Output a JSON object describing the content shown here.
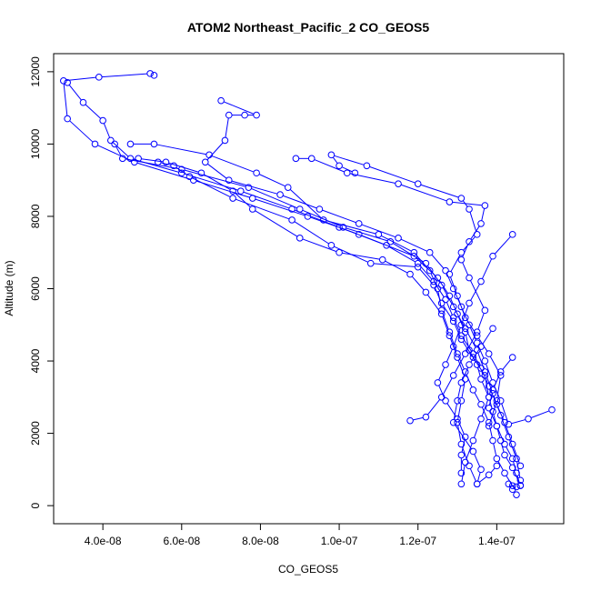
{
  "chart_data": {
    "type": "line",
    "title": "ATOM2 Northeast_Pacific_2 CO_GEOS5",
    "xlabel": "CO_GEOS5",
    "ylabel": "Altitude (m)",
    "xlim": [
      2.75e-08,
      1.57e-07
    ],
    "ylim": [
      -500,
      12500
    ],
    "x_ticks": [
      4e-08,
      6e-08,
      8e-08,
      1e-07,
      1.2e-07,
      1.4e-07
    ],
    "x_tick_labels": [
      "4.0e-08",
      "6.0e-08",
      "8.0e-08",
      "1.0e-07",
      "1.2e-07",
      "1.4e-07"
    ],
    "y_ticks": [
      0,
      2000,
      4000,
      6000,
      8000,
      10000,
      12000
    ],
    "y_tick_labels": [
      "0",
      "2000",
      "4000",
      "6000",
      "8000",
      "10000",
      "12000"
    ],
    "grid": false,
    "marker": "open-circle",
    "series": [
      {
        "color": "#0000ff",
        "points": [
          [
            1.45e-07,
            300
          ],
          [
            1.44e-07,
            450
          ],
          [
            1.43e-07,
            600
          ],
          [
            1.45e-07,
            520
          ],
          [
            1.46e-07,
            560
          ],
          [
            1.44e-07,
            1050
          ],
          [
            1.42e-07,
            1400
          ],
          [
            1.41e-07,
            1800
          ],
          [
            1.4e-07,
            2200
          ],
          [
            1.39e-07,
            2600
          ],
          [
            1.38e-07,
            3000
          ],
          [
            1.36e-07,
            3500
          ],
          [
            1.35e-07,
            3900
          ],
          [
            1.33e-07,
            4300
          ],
          [
            1.32e-07,
            4800
          ],
          [
            1.3e-07,
            5300
          ],
          [
            1.28e-07,
            5800
          ],
          [
            1.25e-07,
            6300
          ],
          [
            1.19e-07,
            6900
          ],
          [
            1.05e-07,
            7500
          ],
          [
            9.2e-08,
            8000
          ],
          [
            7.8e-08,
            8500
          ],
          [
            6.3e-08,
            9000
          ],
          [
            4.8e-08,
            9500
          ],
          [
            3.8e-08,
            10000
          ],
          [
            3.1e-08,
            10700
          ],
          [
            3e-08,
            11750
          ],
          [
            3.9e-08,
            11850
          ],
          [
            5.2e-08,
            11950
          ],
          [
            5.3e-08,
            11900
          ]
        ]
      },
      {
        "color": "#0000ff",
        "points": [
          [
            1.46e-07,
            1100
          ],
          [
            1.44e-07,
            1700
          ],
          [
            1.42e-07,
            2300
          ],
          [
            1.4e-07,
            2800
          ],
          [
            1.38e-07,
            3300
          ],
          [
            1.36e-07,
            3800
          ],
          [
            1.34e-07,
            4200
          ],
          [
            1.31e-07,
            4700
          ],
          [
            1.29e-07,
            5200
          ],
          [
            1.27e-07,
            5700
          ],
          [
            1.24e-07,
            6200
          ],
          [
            1.2e-07,
            6700
          ],
          [
            1.12e-07,
            7200
          ],
          [
            1e-07,
            7700
          ],
          [
            8.8e-08,
            8200
          ],
          [
            7.5e-08,
            8700
          ],
          [
            6e-08,
            9200
          ],
          [
            4.7e-08,
            9600
          ],
          [
            4.2e-08,
            10100
          ],
          [
            4e-08,
            10650
          ],
          [
            3.5e-08,
            11150
          ],
          [
            3.1e-08,
            11700
          ]
        ]
      },
      {
        "color": "#0000ff",
        "points": [
          [
            1.54e-07,
            2650
          ],
          [
            1.48e-07,
            2400
          ],
          [
            1.43e-07,
            2250
          ],
          [
            1.41e-07,
            2900
          ],
          [
            1.39e-07,
            3400
          ],
          [
            1.37e-07,
            4000
          ],
          [
            1.35e-07,
            4500
          ],
          [
            1.33e-07,
            5000
          ],
          [
            1.31e-07,
            5500
          ],
          [
            1.29e-07,
            6000
          ],
          [
            1.27e-07,
            6500
          ],
          [
            1.23e-07,
            7000
          ],
          [
            1.15e-07,
            7400
          ],
          [
            1.05e-07,
            7800
          ],
          [
            9.5e-08,
            8200
          ],
          [
            8.5e-08,
            8600
          ],
          [
            7.2e-08,
            9000
          ],
          [
            6.6e-08,
            9500
          ],
          [
            7.1e-08,
            10100
          ],
          [
            7.2e-08,
            10800
          ],
          [
            7.6e-08,
            10800
          ],
          [
            7.9e-08,
            10800
          ],
          [
            7e-08,
            11200
          ]
        ]
      },
      {
        "color": "#0000ff",
        "points": [
          [
            1.35e-07,
            600
          ],
          [
            1.33e-07,
            1100
          ],
          [
            1.31e-07,
            1700
          ],
          [
            1.3e-07,
            2300
          ],
          [
            1.31e-07,
            2900
          ],
          [
            1.32e-07,
            3500
          ],
          [
            1.3e-07,
            4100
          ],
          [
            1.28e-07,
            4700
          ],
          [
            1.26e-07,
            5300
          ],
          [
            1.22e-07,
            5900
          ],
          [
            1.18e-07,
            6400
          ],
          [
            1.11e-07,
            6800
          ],
          [
            1e-07,
            7000
          ],
          [
            9e-08,
            7400
          ],
          [
            7.8e-08,
            8200
          ],
          [
            7.3e-08,
            8700
          ],
          [
            6.5e-08,
            9200
          ],
          [
            5.6e-08,
            9500
          ],
          [
            4.9e-08,
            9600
          ]
        ]
      },
      {
        "color": "#0000ff",
        "points": [
          [
            1.44e-07,
            550
          ],
          [
            1.42e-07,
            900
          ],
          [
            1.4e-07,
            1300
          ],
          [
            1.39e-07,
            1800
          ],
          [
            1.38e-07,
            2300
          ],
          [
            1.36e-07,
            2800
          ],
          [
            1.34e-07,
            3200
          ],
          [
            1.32e-07,
            3700
          ],
          [
            1.3e-07,
            4200
          ],
          [
            1.28e-07,
            4800
          ],
          [
            1.26e-07,
            5400
          ],
          [
            1.25e-07,
            6000
          ],
          [
            1.23e-07,
            6500
          ],
          [
            1.19e-07,
            7000
          ],
          [
            1.1e-07,
            7500
          ],
          [
            9.6e-08,
            7900
          ],
          [
            8.7e-08,
            8800
          ],
          [
            7.9e-08,
            9200
          ],
          [
            6.7e-08,
            9700
          ],
          [
            5.3e-08,
            10000
          ],
          [
            4.7e-08,
            10000
          ]
        ]
      },
      {
        "color": "#0000ff",
        "points": [
          [
            1.31e-07,
            600
          ],
          [
            1.32e-07,
            1200
          ],
          [
            1.34e-07,
            1800
          ],
          [
            1.36e-07,
            2400
          ],
          [
            1.38e-07,
            3000
          ],
          [
            1.37e-07,
            3600
          ],
          [
            1.34e-07,
            4100
          ],
          [
            1.31e-07,
            4600
          ],
          [
            1.29e-07,
            5100
          ],
          [
            1.26e-07,
            5600
          ],
          [
            1.24e-07,
            6100
          ],
          [
            1.2e-07,
            6600
          ],
          [
            1.08e-07,
            6700
          ],
          [
            9.8e-08,
            7200
          ],
          [
            8.8e-08,
            7900
          ],
          [
            7.3e-08,
            8500
          ],
          [
            6.2e-08,
            9100
          ],
          [
            5.8e-08,
            9400
          ],
          [
            5.4e-08,
            9500
          ]
        ]
      },
      {
        "color": "#0000ff",
        "points": [
          [
            1.46e-07,
            700
          ],
          [
            1.45e-07,
            1300
          ],
          [
            1.43e-07,
            1900
          ],
          [
            1.41e-07,
            2500
          ],
          [
            1.39e-07,
            3100
          ],
          [
            1.37e-07,
            3700
          ],
          [
            1.35e-07,
            4300
          ],
          [
            1.32e-07,
            4900
          ],
          [
            1.29e-07,
            5500
          ],
          [
            1.26e-07,
            6100
          ],
          [
            1.22e-07,
            6700
          ],
          [
            1.13e-07,
            7300
          ],
          [
            1.01e-07,
            7700
          ],
          [
            9e-08,
            8200
          ],
          [
            7.7e-08,
            8800
          ],
          [
            6e-08,
            9300
          ],
          [
            4.5e-08,
            9600
          ],
          [
            4.3e-08,
            10000
          ]
        ]
      },
      {
        "color": "#0000ff",
        "points": [
          [
            1.18e-07,
            2350
          ],
          [
            1.22e-07,
            2450
          ],
          [
            1.26e-07,
            3000
          ],
          [
            1.29e-07,
            3600
          ],
          [
            1.32e-07,
            4200
          ],
          [
            1.35e-07,
            4800
          ],
          [
            1.37e-07,
            5400
          ],
          [
            1.33e-07,
            6300
          ],
          [
            1.31e-07,
            6800
          ],
          [
            1.33e-07,
            7300
          ],
          [
            1.36e-07,
            7800
          ],
          [
            1.37e-07,
            8300
          ],
          [
            1.28e-07,
            8400
          ],
          [
            1.15e-07,
            8900
          ],
          [
            1.02e-07,
            9200
          ],
          [
            9.3e-08,
            9600
          ],
          [
            8.9e-08,
            9600
          ]
        ]
      },
      {
        "color": "#0000ff",
        "points": [
          [
            1.38e-07,
            2200
          ],
          [
            1.4e-07,
            2900
          ],
          [
            1.41e-07,
            3600
          ],
          [
            1.38e-07,
            4200
          ],
          [
            1.35e-07,
            4700
          ],
          [
            1.32e-07,
            5200
          ],
          [
            1.3e-07,
            5800
          ],
          [
            1.28e-07,
            6400
          ],
          [
            1.31e-07,
            7000
          ],
          [
            1.35e-07,
            7500
          ],
          [
            1.33e-07,
            8200
          ],
          [
            1.31e-07,
            8500
          ],
          [
            1.2e-07,
            8900
          ],
          [
            1.07e-07,
            9400
          ],
          [
            9.8e-08,
            9700
          ],
          [
            1e-07,
            9400
          ],
          [
            1.04e-07,
            9200
          ]
        ]
      },
      {
        "color": "#0000ff",
        "points": [
          [
            1.39e-07,
            4900
          ],
          [
            1.36e-07,
            4400
          ],
          [
            1.33e-07,
            3900
          ],
          [
            1.31e-07,
            3400
          ],
          [
            1.3e-07,
            2900
          ],
          [
            1.29e-07,
            2300
          ],
          [
            1.34e-07,
            1500
          ],
          [
            1.36e-07,
            1000
          ],
          [
            1.35e-07,
            600
          ],
          [
            1.38e-07,
            850
          ],
          [
            1.4e-07,
            1100
          ]
        ]
      },
      {
        "color": "#0000ff",
        "points": [
          [
            1.44e-07,
            7500
          ],
          [
            1.39e-07,
            6900
          ],
          [
            1.36e-07,
            6200
          ],
          [
            1.33e-07,
            5600
          ],
          [
            1.31e-07,
            5000
          ],
          [
            1.29e-07,
            4400
          ],
          [
            1.27e-07,
            3900
          ],
          [
            1.25e-07,
            3400
          ],
          [
            1.27e-07,
            2900
          ],
          [
            1.3e-07,
            2400
          ],
          [
            1.32e-07,
            1900
          ],
          [
            1.31e-07,
            1400
          ],
          [
            1.31e-07,
            900
          ]
        ]
      },
      {
        "color": "#0000ff",
        "points": [
          [
            1.44e-07,
            4100
          ],
          [
            1.41e-07,
            3700
          ],
          [
            1.39e-07,
            3200
          ],
          [
            1.38e-07,
            2700
          ],
          [
            1.4e-07,
            2200
          ],
          [
            1.42e-07,
            1700
          ],
          [
            1.44e-07,
            1300
          ],
          [
            1.45e-07,
            900
          ],
          [
            1.46e-07,
            550
          ]
        ]
      }
    ]
  }
}
